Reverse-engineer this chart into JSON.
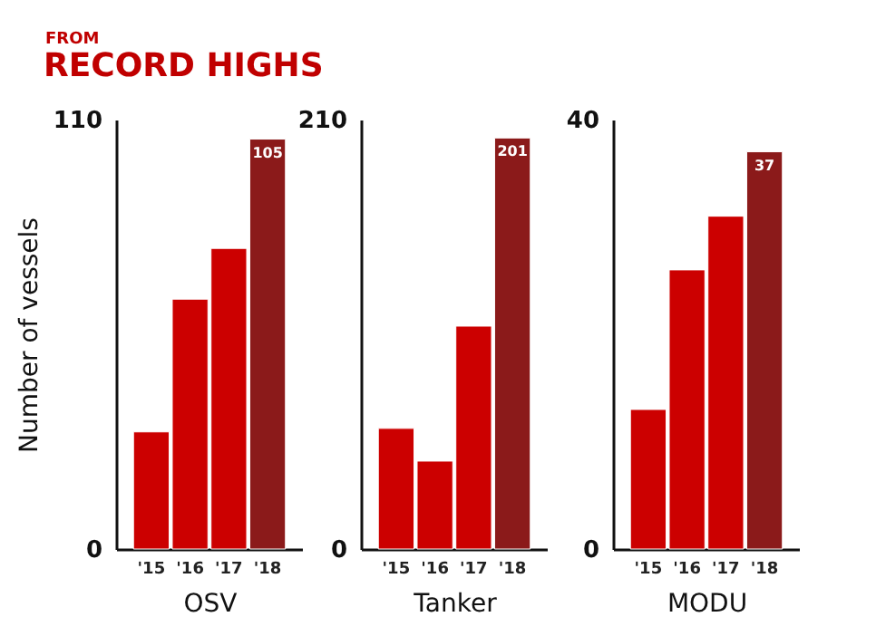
{
  "chart_data": [
    {
      "type": "bar",
      "subtitle": "FROM",
      "title": "RECORD HIGHS",
      "ylabel": "Number of vessels",
      "xlabel": "OSV",
      "categories": [
        "'15",
        "'16",
        "'17",
        "'18"
      ],
      "values": [
        30,
        64,
        77,
        105
      ],
      "colors": [
        "#cc0000",
        "#cc0000",
        "#cc0000",
        "#8b1a1a"
      ],
      "value_labels": [
        null,
        null,
        null,
        "105"
      ],
      "ylim": [
        0,
        110
      ],
      "yticks": [
        0,
        110
      ]
    },
    {
      "type": "bar",
      "xlabel": "Tanker",
      "categories": [
        "'15",
        "'16",
        "'17",
        "'18"
      ],
      "values": [
        59,
        43,
        109,
        201
      ],
      "colors": [
        "#cc0000",
        "#cc0000",
        "#cc0000",
        "#8b1a1a"
      ],
      "value_labels": [
        null,
        null,
        null,
        "201"
      ],
      "ylim": [
        0,
        210
      ],
      "yticks": [
        0,
        210
      ]
    },
    {
      "type": "bar",
      "xlabel": "MODU",
      "categories": [
        "'15",
        "'16",
        "'17",
        "'18"
      ],
      "values": [
        13,
        26,
        31,
        37
      ],
      "colors": [
        "#cc0000",
        "#cc0000",
        "#cc0000",
        "#8b1a1a"
      ],
      "value_labels": [
        null,
        null,
        null,
        "37"
      ],
      "ylim": [
        0,
        40
      ],
      "yticks": [
        0,
        40
      ]
    }
  ]
}
